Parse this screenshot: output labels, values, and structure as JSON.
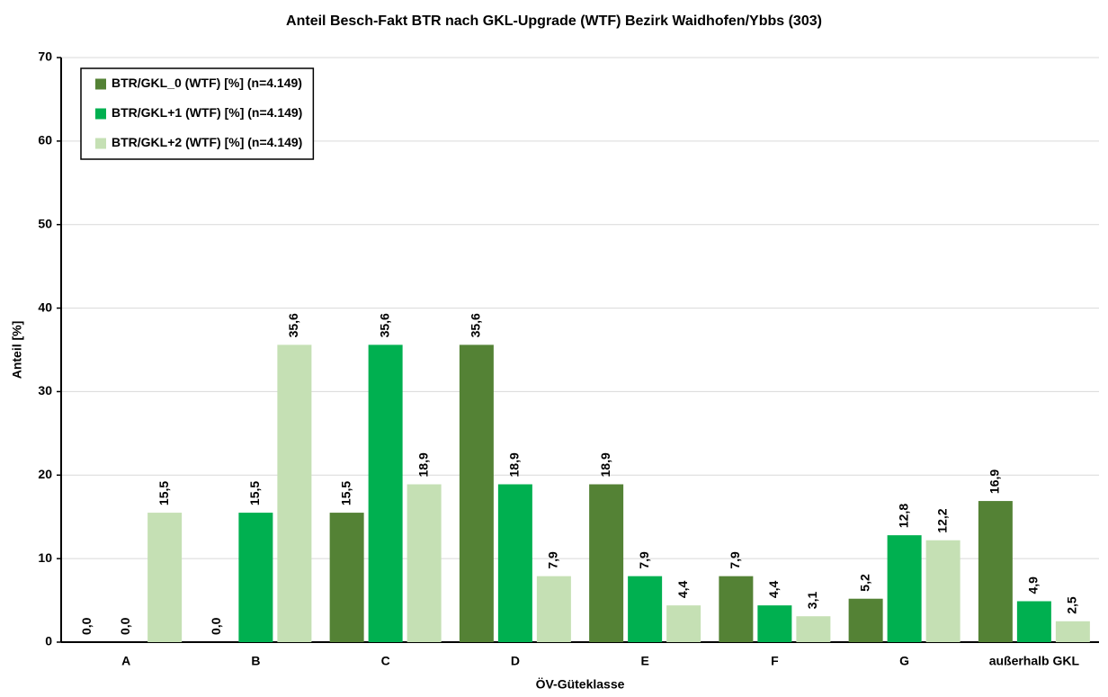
{
  "chart_data": {
    "type": "bar",
    "title": "Anteil Besch-Fakt BTR nach GKL-Upgrade (WTF) Bezirk Waidhofen/Ybbs (303)",
    "x_label": "ÖV-Güteklasse",
    "y_label": "Anteil [%]",
    "categories": [
      "A",
      "B",
      "C",
      "D",
      "E",
      "F",
      "G",
      "außerhalb GKL"
    ],
    "series": [
      {
        "name": "BTR/GKL_0 (WTF) [%] (n=4.149)",
        "color": "#548235",
        "values": [
          0.0,
          0.0,
          15.5,
          35.6,
          18.9,
          7.9,
          5.2,
          16.9
        ],
        "value_labels": [
          "0,0",
          "0,0",
          "15,5",
          "35,6",
          "18,9",
          "7,9",
          "5,2",
          "16,9"
        ]
      },
      {
        "name": "BTR/GKL+1 (WTF) [%] (n=4.149)",
        "color": "#00b050",
        "values": [
          0.0,
          15.5,
          35.6,
          18.9,
          7.9,
          4.4,
          12.8,
          4.9
        ],
        "value_labels": [
          "0,0",
          "15,5",
          "35,6",
          "18,9",
          "7,9",
          "4,4",
          "12,8",
          "4,9"
        ]
      },
      {
        "name": "BTR/GKL+2 (WTF) [%] (n=4.149)",
        "color": "#c5e0b4",
        "values": [
          15.5,
          35.6,
          18.9,
          7.9,
          4.4,
          3.1,
          12.2,
          2.5
        ],
        "value_labels": [
          "15,5",
          "35,6",
          "18,9",
          "7,9",
          "4,4",
          "3,1",
          "12,2",
          "2,5"
        ]
      }
    ],
    "ylim": [
      0,
      70
    ],
    "yticks": [
      0,
      10,
      20,
      30,
      40,
      50,
      60,
      70
    ],
    "grid": true,
    "legend": "top-left"
  }
}
